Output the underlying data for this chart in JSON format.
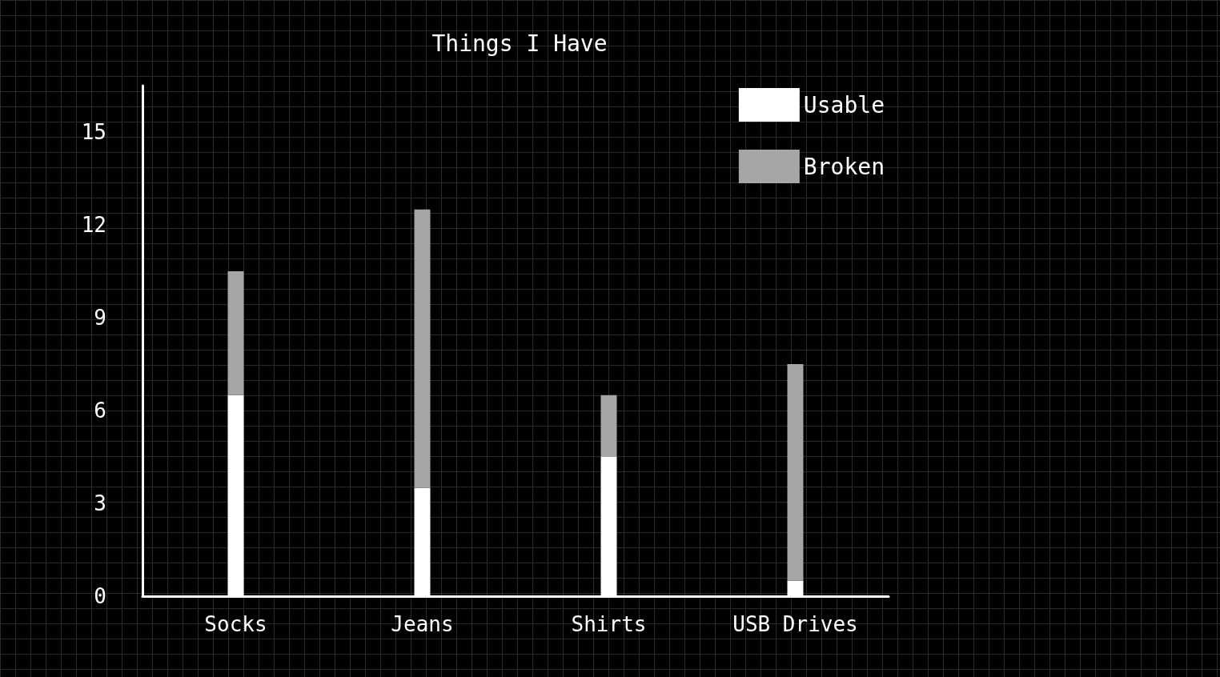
{
  "chart_data": {
    "type": "bar",
    "title": "Things I Have",
    "stacked": true,
    "categories": [
      "Socks",
      "Jeans",
      "Shirts",
      "USB Drives"
    ],
    "series": [
      {
        "name": "Usable",
        "color": "#ffffff",
        "values": [
          6.5,
          3.5,
          4.5,
          0.5
        ]
      },
      {
        "name": "Broken",
        "color": "#a6a6a6",
        "values": [
          4,
          9,
          2,
          7
        ]
      }
    ],
    "ylim": [
      0,
      16.5
    ],
    "yticks": [
      0,
      3,
      6,
      9,
      12,
      15
    ],
    "grid": false,
    "legend": "top right"
  }
}
